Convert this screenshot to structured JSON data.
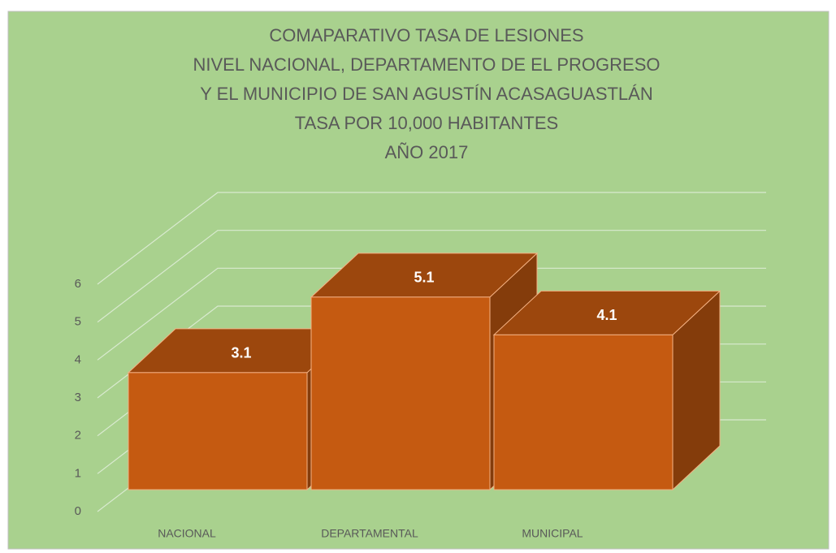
{
  "chart_data": {
    "type": "bar3d",
    "title": [
      "COMAPARATIVO TASA DE LESIONES",
      "NIVEL NACIONAL, DEPARTAMENTO DE EL PROGRESO",
      "Y EL MUNICIPIO DE SAN AGUSTÍN ACASAGUASTLÁN",
      "TASA POR 10,000 HABITANTES",
      "AÑO 2017"
    ],
    "categories": [
      "NACIONAL",
      "DEPARTAMENTAL",
      "MUNICIPAL"
    ],
    "values": [
      3.1,
      5.1,
      4.1
    ],
    "color": "#c55a11",
    "ylim": [
      0,
      6
    ],
    "yticks": [
      0,
      1,
      2,
      3,
      4,
      5,
      6
    ],
    "grid": true
  }
}
